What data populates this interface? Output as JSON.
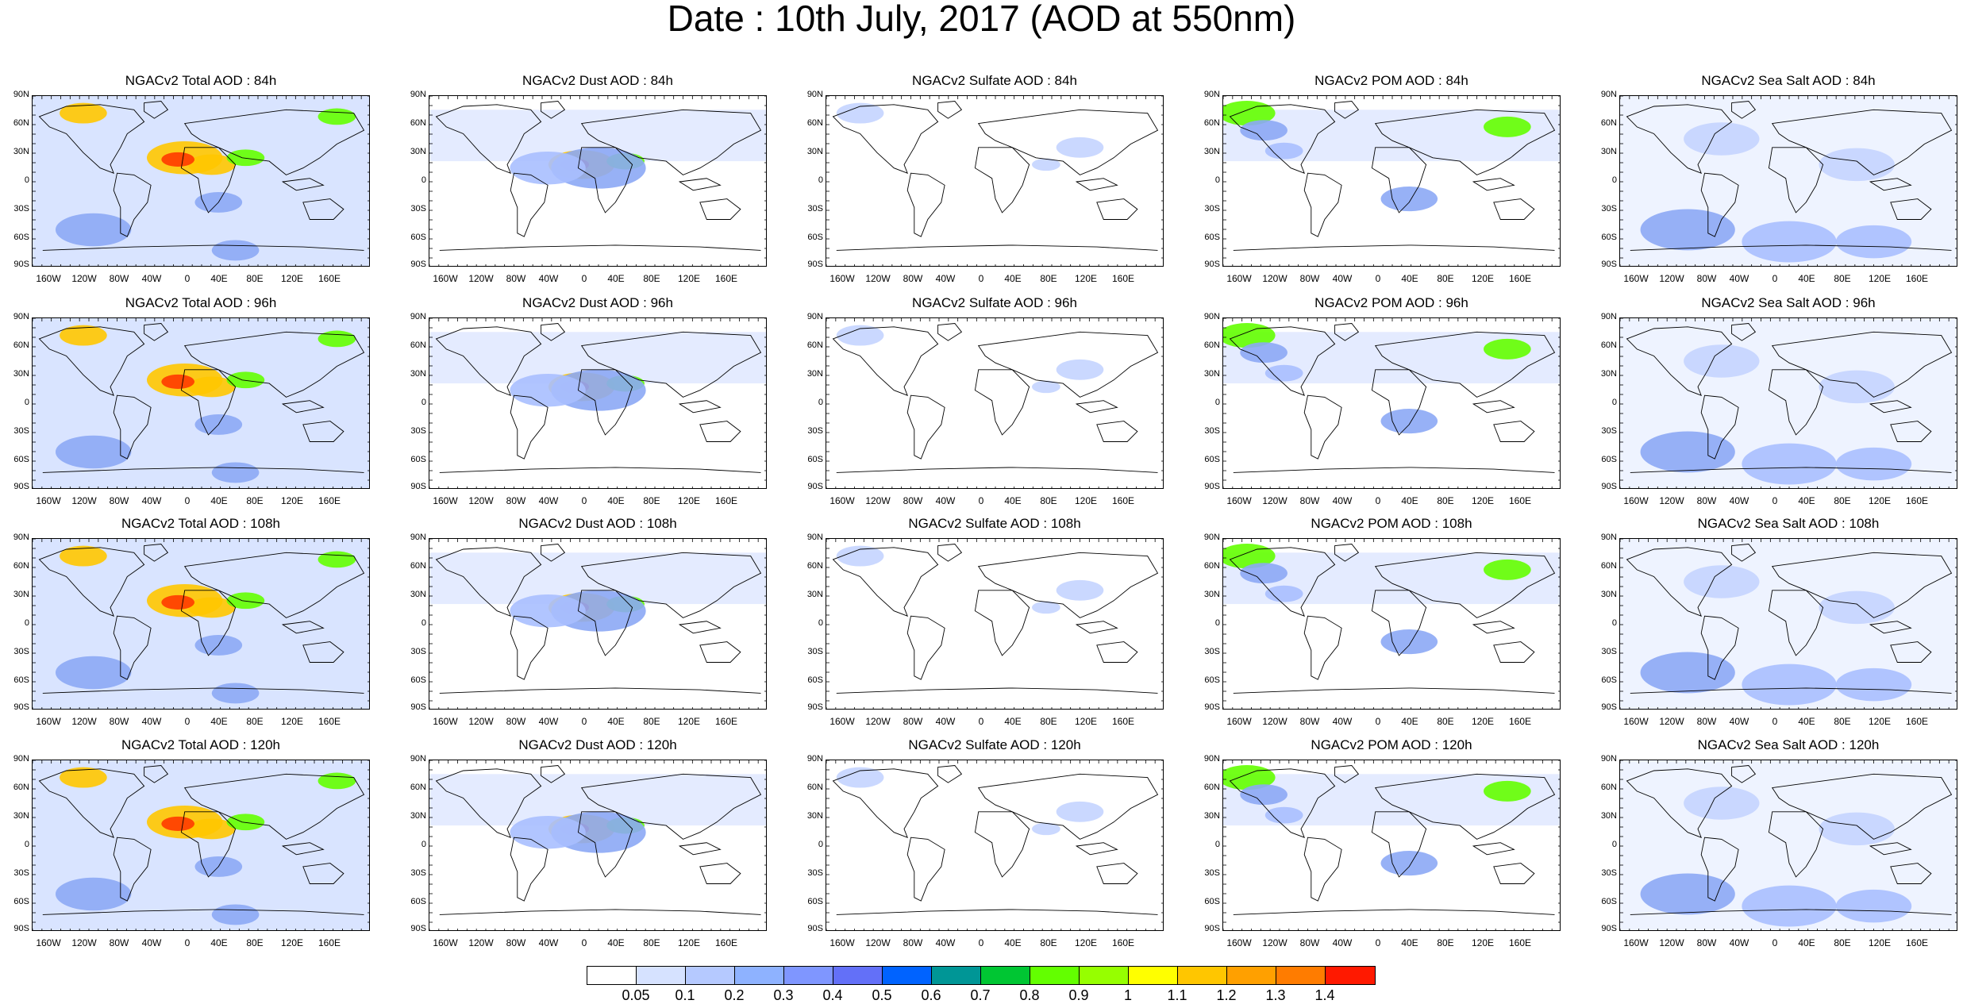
{
  "title": "Date : 10th July, 2017 (AOD at 550nm)",
  "panels": [
    [
      "NGACv2 Total AOD : 84h",
      "NGACv2 Dust AOD : 84h",
      "NGACv2 Sulfate AOD : 84h",
      "NGACv2 POM AOD : 84h",
      "NGACv2 Sea Salt AOD : 84h"
    ],
    [
      "NGACv2 Total AOD : 96h",
      "NGACv2 Dust AOD : 96h",
      "NGACv2 Sulfate AOD : 96h",
      "NGACv2 POM AOD : 96h",
      "NGACv2 Sea Salt AOD : 96h"
    ],
    [
      "NGACv2 Total AOD : 108h",
      "NGACv2 Dust AOD : 108h",
      "NGACv2 Sulfate AOD : 108h",
      "NGACv2 POM AOD : 108h",
      "NGACv2 Sea Salt AOD : 108h"
    ],
    [
      "NGACv2 Total AOD : 120h",
      "NGACv2 Dust AOD : 120h",
      "NGACv2 Sulfate AOD : 120h",
      "NGACv2 POM AOD : 120h",
      "NGACv2 Sea Salt  AOD : 120h"
    ]
  ],
  "lat_labels": [
    "90N",
    "60N",
    "30N",
    "0",
    "30S",
    "60S",
    "90S"
  ],
  "lon_labels": [
    "160W",
    "120W",
    "80W",
    "40W",
    "0",
    "40E",
    "80E",
    "120E",
    "160E"
  ],
  "colorbar": {
    "labels": [
      "0.05",
      "0.1",
      "0.2",
      "0.3",
      "0.4",
      "0.5",
      "0.6",
      "0.7",
      "0.8",
      "0.9",
      "1",
      "1.1",
      "1.2",
      "1.3",
      "1.4"
    ],
    "colors": [
      "#ffffff",
      "#d6e2ff",
      "#b5c9ff",
      "#8eb2ff",
      "#7f96ff",
      "#6370f8",
      "#0063ff",
      "#009696",
      "#00c633",
      "#63ff00",
      "#96ff00",
      "#ffff00",
      "#ffc600",
      "#ffa000",
      "#ff7c00",
      "#ff1900"
    ]
  },
  "map_fields": {
    "background": "#d9e4ff",
    "levels": [
      {
        "name": "low",
        "color": "#c4d4ff"
      },
      {
        "name": "mid",
        "color": "#a8bfff"
      },
      {
        "name": "high",
        "color": "#8ca8f5"
      },
      {
        "name": "dust",
        "color": "#ffc600"
      },
      {
        "name": "peak",
        "color": "#ff3a00"
      },
      {
        "name": "green",
        "color": "#63ff00"
      }
    ]
  }
}
